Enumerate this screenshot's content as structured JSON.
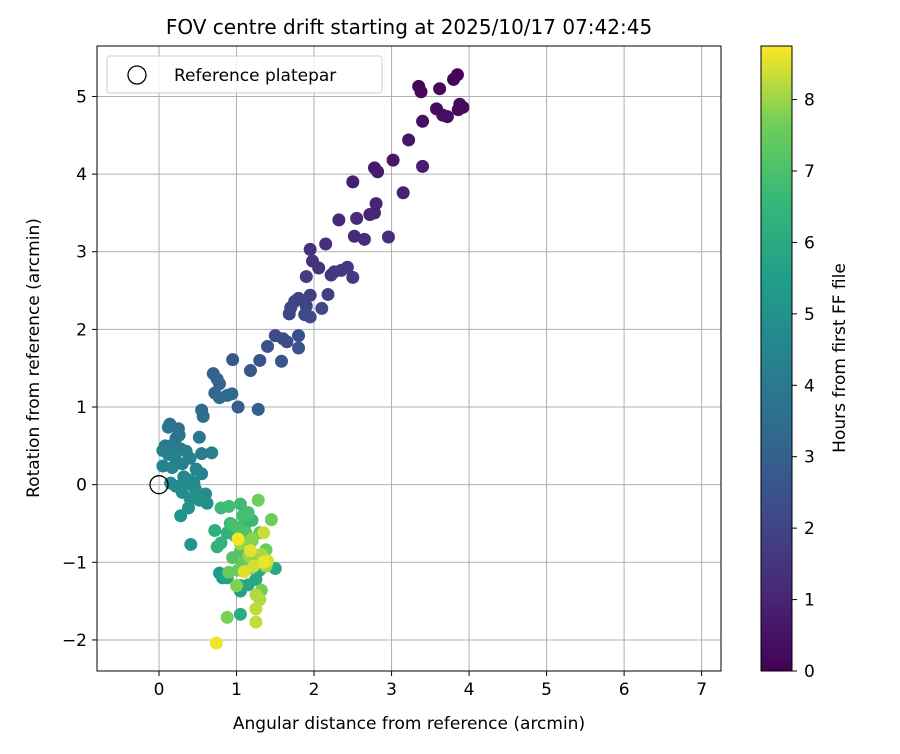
{
  "chart_data": {
    "type": "scatter",
    "title": "FOV centre drift starting at 2025/10/17 07:42:45",
    "xlabel": "Angular distance from reference (arcmin)",
    "ylabel": "Rotation from reference (arcmin)",
    "xlim": [
      -0.8,
      7.25
    ],
    "ylim": [
      -2.4,
      5.65
    ],
    "xticks": [
      "0",
      "1",
      "2",
      "3",
      "4",
      "5",
      "6",
      "7"
    ],
    "yticks": [
      "−2",
      "−1",
      "0",
      "1",
      "2",
      "3",
      "4",
      "5"
    ],
    "grid": true,
    "legend": {
      "placement": "top-left",
      "entries": [
        "Reference platepar"
      ]
    },
    "reference_point": {
      "x": 0,
      "y": 0
    },
    "colorbar": {
      "label": "Hours from first FF file",
      "range": [
        0,
        8.75
      ],
      "ticks": [
        "0",
        "1",
        "2",
        "3",
        "4",
        "5",
        "6",
        "7",
        "8"
      ],
      "colormap": "viridis"
    },
    "points": [
      [
        3.85,
        5.28,
        0.05
      ],
      [
        3.8,
        5.22,
        0.1
      ],
      [
        3.35,
        5.13,
        0.15
      ],
      [
        3.38,
        5.06,
        0.2
      ],
      [
        3.62,
        5.1,
        0.2
      ],
      [
        3.88,
        4.9,
        0.25
      ],
      [
        3.92,
        4.86,
        0.25
      ],
      [
        3.86,
        4.83,
        0.3
      ],
      [
        3.58,
        4.84,
        0.35
      ],
      [
        3.66,
        4.76,
        0.35
      ],
      [
        3.72,
        4.74,
        0.4
      ],
      [
        3.4,
        4.68,
        0.45
      ],
      [
        3.22,
        4.44,
        0.55
      ],
      [
        3.02,
        4.18,
        0.65
      ],
      [
        2.78,
        4.08,
        0.7
      ],
      [
        2.82,
        4.03,
        0.75
      ],
      [
        3.4,
        4.1,
        0.8
      ],
      [
        2.5,
        3.9,
        0.85
      ],
      [
        3.15,
        3.76,
        0.9
      ],
      [
        2.8,
        3.62,
        0.95
      ],
      [
        2.78,
        3.5,
        1.0
      ],
      [
        2.72,
        3.48,
        1.05
      ],
      [
        2.32,
        3.41,
        1.1
      ],
      [
        2.55,
        3.43,
        1.15
      ],
      [
        2.52,
        3.2,
        1.2
      ],
      [
        2.65,
        3.16,
        1.25
      ],
      [
        2.96,
        3.19,
        1.3
      ],
      [
        2.15,
        3.1,
        1.35
      ],
      [
        1.95,
        3.03,
        1.4
      ],
      [
        1.98,
        2.88,
        1.45
      ],
      [
        2.06,
        2.79,
        1.5
      ],
      [
        2.22,
        2.7,
        1.55
      ],
      [
        2.26,
        2.74,
        1.6
      ],
      [
        2.43,
        2.8,
        1.62
      ],
      [
        2.35,
        2.76,
        1.65
      ],
      [
        2.5,
        2.67,
        1.7
      ],
      [
        1.9,
        2.68,
        1.75
      ],
      [
        2.18,
        2.45,
        1.8
      ],
      [
        1.95,
        2.44,
        1.85
      ],
      [
        1.8,
        2.4,
        1.9
      ],
      [
        1.9,
        2.3,
        1.95
      ],
      [
        1.75,
        2.36,
        2.0
      ],
      [
        1.7,
        2.28,
        2.0
      ],
      [
        1.68,
        2.2,
        2.05
      ],
      [
        2.1,
        2.27,
        2.1
      ],
      [
        1.88,
        2.19,
        2.15
      ],
      [
        1.95,
        2.16,
        2.2
      ],
      [
        1.5,
        1.92,
        2.25
      ],
      [
        1.6,
        1.88,
        2.3
      ],
      [
        1.65,
        1.84,
        2.35
      ],
      [
        1.8,
        1.92,
        2.4
      ],
      [
        1.4,
        1.78,
        2.45
      ],
      [
        1.8,
        1.76,
        2.5
      ],
      [
        1.3,
        1.6,
        2.55
      ],
      [
        1.58,
        1.59,
        2.6
      ],
      [
        1.18,
        1.47,
        2.7
      ],
      [
        0.95,
        1.61,
        2.75
      ],
      [
        1.02,
        1.0,
        2.9
      ],
      [
        1.28,
        0.97,
        3.0
      ],
      [
        0.7,
        1.43,
        3.05
      ],
      [
        0.75,
        1.36,
        3.1
      ],
      [
        0.78,
        1.3,
        3.15
      ],
      [
        0.72,
        1.18,
        3.2
      ],
      [
        0.88,
        1.15,
        3.25
      ],
      [
        0.78,
        1.12,
        3.3
      ],
      [
        0.94,
        1.17,
        3.35
      ],
      [
        0.55,
        0.96,
        3.45
      ],
      [
        0.57,
        0.88,
        3.5
      ],
      [
        0.14,
        0.78,
        3.6
      ],
      [
        0.25,
        0.72,
        3.7
      ],
      [
        0.12,
        0.74,
        3.75
      ],
      [
        0.26,
        0.64,
        3.8
      ],
      [
        0.22,
        0.6,
        3.85
      ],
      [
        0.52,
        0.61,
        3.9
      ],
      [
        0.08,
        0.5,
        4.0
      ],
      [
        0.15,
        0.5,
        4.05
      ],
      [
        0.28,
        0.46,
        4.1
      ],
      [
        0.35,
        0.43,
        4.1
      ],
      [
        0.55,
        0.4,
        4.15
      ],
      [
        0.68,
        0.41,
        4.2
      ],
      [
        0.05,
        0.44,
        4.25
      ],
      [
        0.12,
        0.39,
        4.3
      ],
      [
        0.2,
        0.36,
        4.3
      ],
      [
        0.4,
        0.34,
        4.35
      ],
      [
        0.3,
        0.27,
        4.35
      ],
      [
        0.05,
        0.24,
        4.4
      ],
      [
        0.17,
        0.22,
        4.45
      ],
      [
        0.48,
        0.2,
        4.45
      ],
      [
        0.55,
        0.14,
        4.5
      ],
      [
        0.32,
        0.1,
        4.55
      ],
      [
        0.4,
        0.06,
        4.6
      ],
      [
        0.45,
        0.02,
        4.65
      ],
      [
        0.15,
        0.02,
        4.7
      ],
      [
        0.22,
        -0.02,
        4.7
      ],
      [
        0.34,
        0.0,
        4.75
      ],
      [
        0.47,
        -0.06,
        4.75
      ],
      [
        0.3,
        -0.1,
        4.8
      ],
      [
        0.6,
        -0.12,
        4.85
      ],
      [
        0.4,
        -0.18,
        4.9
      ],
      [
        0.62,
        -0.24,
        4.95
      ],
      [
        0.52,
        -0.2,
        5.0
      ],
      [
        0.38,
        -0.3,
        5.05
      ],
      [
        0.28,
        -0.4,
        5.1
      ],
      [
        0.41,
        -0.77,
        5.15
      ],
      [
        0.78,
        -1.14,
        5.3
      ],
      [
        0.82,
        -1.2,
        5.45
      ],
      [
        1.05,
        -1.37,
        5.6
      ],
      [
        0.88,
        -1.2,
        5.7
      ],
      [
        1.05,
        -1.3,
        5.75
      ],
      [
        1.15,
        -1.29,
        5.8
      ],
      [
        1.25,
        -1.22,
        5.85
      ],
      [
        1.3,
        -1.1,
        5.9
      ],
      [
        1.5,
        -1.08,
        5.95
      ],
      [
        1.25,
        -1.0,
        6.0
      ],
      [
        1.05,
        -1.67,
        6.05
      ],
      [
        0.72,
        -0.59,
        6.2
      ],
      [
        0.75,
        -0.8,
        6.3
      ],
      [
        0.8,
        -0.75,
        6.35
      ],
      [
        0.88,
        -0.62,
        6.4
      ],
      [
        0.98,
        -0.66,
        6.45
      ],
      [
        1.0,
        -0.57,
        6.5
      ],
      [
        1.1,
        -0.55,
        6.55
      ],
      [
        0.92,
        -0.5,
        6.6
      ],
      [
        1.2,
        -0.46,
        6.65
      ],
      [
        0.8,
        -0.3,
        6.7
      ],
      [
        1.05,
        -0.25,
        6.75
      ],
      [
        0.9,
        -0.28,
        6.8
      ],
      [
        1.08,
        -0.4,
        6.85
      ],
      [
        1.15,
        -0.36,
        6.9
      ],
      [
        0.95,
        -0.52,
        6.95
      ],
      [
        1.02,
        -0.55,
        7.0
      ],
      [
        1.2,
        -0.72,
        7.05
      ],
      [
        1.12,
        -0.62,
        7.1
      ],
      [
        1.05,
        -0.86,
        7.15
      ],
      [
        0.95,
        -0.94,
        7.2
      ],
      [
        1.3,
        -0.62,
        7.25
      ],
      [
        1.12,
        -0.78,
        7.3
      ],
      [
        1.22,
        -0.9,
        7.35
      ],
      [
        1.08,
        -1.02,
        7.4
      ],
      [
        1.15,
        -1.08,
        7.45
      ],
      [
        1.02,
        -1.1,
        7.5
      ],
      [
        0.9,
        -1.13,
        7.5
      ],
      [
        1.38,
        -0.84,
        7.55
      ],
      [
        1.45,
        -0.45,
        7.6
      ],
      [
        1.28,
        -0.2,
        7.65
      ],
      [
        1.32,
        -1.36,
        7.7
      ],
      [
        0.88,
        -1.71,
        7.75
      ],
      [
        1.0,
        -1.3,
        7.8
      ],
      [
        1.2,
        -0.7,
        7.85
      ],
      [
        1.28,
        -0.96,
        7.9
      ],
      [
        1.16,
        -0.92,
        7.95
      ],
      [
        1.05,
        -0.76,
        8.0
      ],
      [
        1.38,
        -1.05,
        8.05
      ],
      [
        1.32,
        -0.9,
        8.1
      ],
      [
        1.25,
        -1.42,
        8.15
      ],
      [
        1.3,
        -1.48,
        8.2
      ],
      [
        1.25,
        -1.6,
        8.25
      ],
      [
        1.25,
        -1.77,
        8.3
      ],
      [
        1.35,
        -0.62,
        8.35
      ],
      [
        1.22,
        -1.05,
        8.4
      ],
      [
        1.4,
        -0.98,
        8.45
      ],
      [
        1.1,
        -1.12,
        8.5
      ],
      [
        1.18,
        -0.85,
        8.55
      ],
      [
        1.35,
        -1.0,
        8.6
      ],
      [
        0.74,
        -2.04,
        8.65
      ],
      [
        1.02,
        -0.7,
        8.7
      ]
    ]
  }
}
